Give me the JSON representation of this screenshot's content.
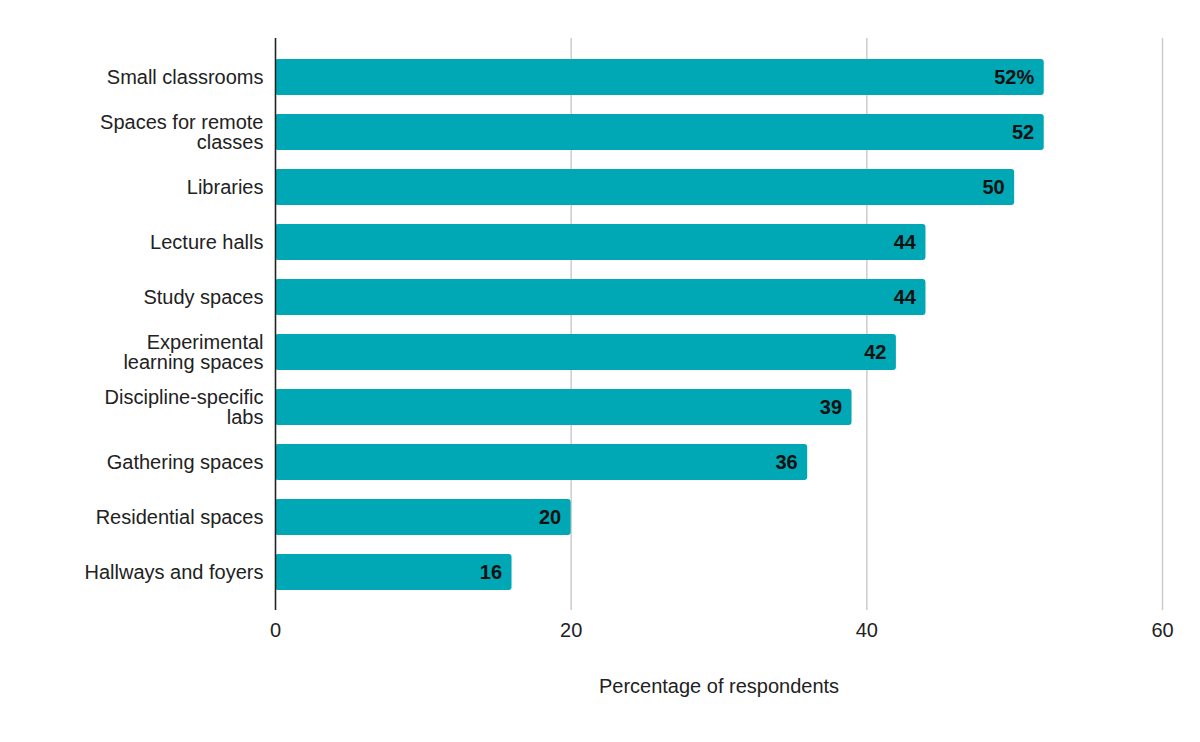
{
  "chart_data": {
    "type": "bar",
    "orientation": "horizontal",
    "categories": [
      "Small classrooms",
      "Spaces for remote classes",
      "Libraries",
      "Lecture halls",
      "Study spaces",
      "Experimental learning spaces",
      "Discipline-specific labs",
      "Gathering spaces",
      "Residential spaces",
      "Hallways and foyers"
    ],
    "values": [
      52,
      52,
      50,
      44,
      44,
      42,
      39,
      36,
      20,
      16
    ],
    "value_labels": [
      "52%",
      "52",
      "50",
      "44",
      "44",
      "42",
      "39",
      "36",
      "20",
      "16"
    ],
    "color": "#00a7b5",
    "x_label": "Percentage of respondents",
    "xlim": [
      0,
      60
    ],
    "xticks": [
      0,
      20,
      40,
      60
    ],
    "grid": true,
    "data_labels": true
  }
}
